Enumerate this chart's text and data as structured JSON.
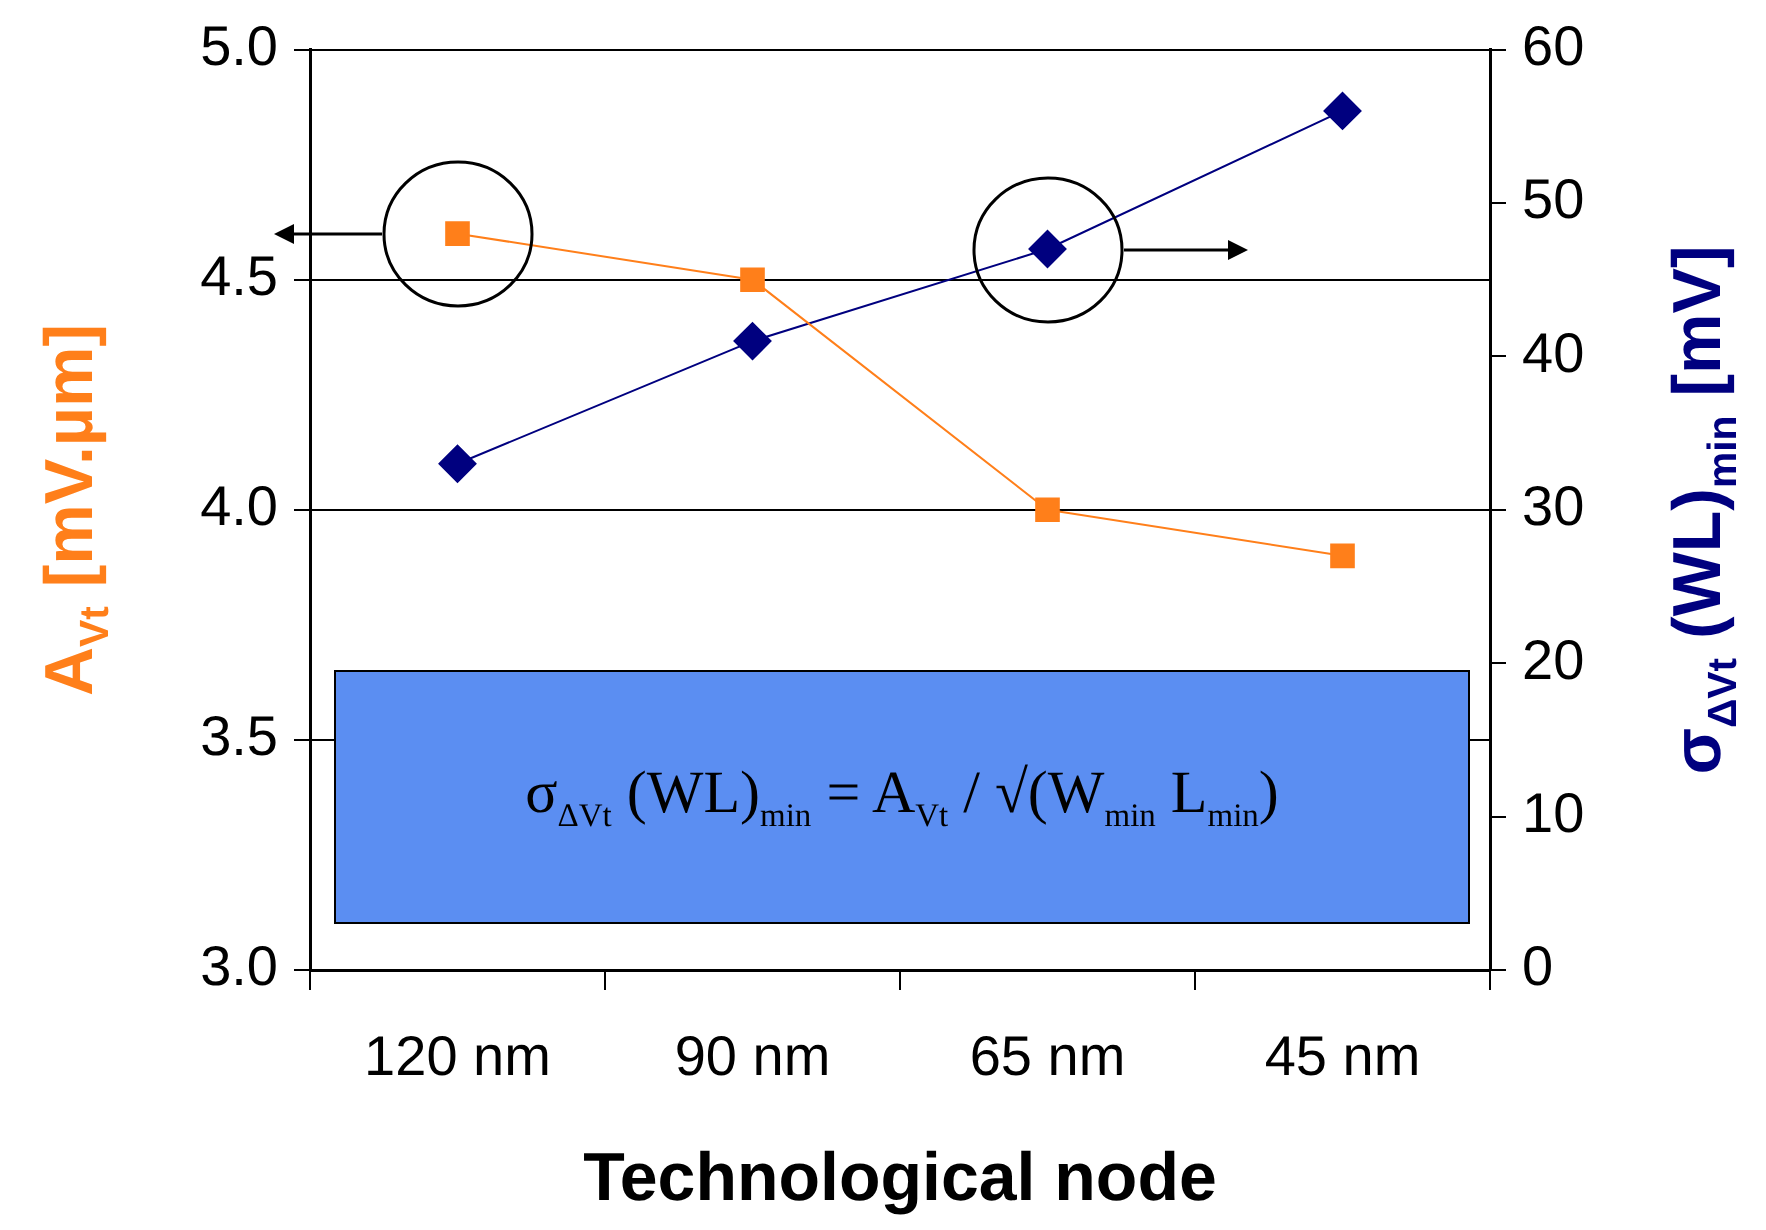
{
  "chart_data": {
    "type": "line",
    "xlabel": "Technological node",
    "ylabel": "A$_{Vt}$ [mV.µm]",
    "y2label": "σ$_{ΔVt}$ (WL)$_{min}$ [mV]",
    "categories": [
      "120 nm",
      "90 nm",
      "65 nm",
      "45 nm"
    ],
    "series": [
      {
        "color": "#ff7f1a",
        "values": [
          4.6,
          4.5,
          4.0,
          3.9
        ],
        "marker": "square"
      },
      {
        "color": "#00007f",
        "values": [
          33,
          41,
          47,
          56
        ],
        "marker": "diamond",
        "axis": "y2"
      }
    ],
    "ylim": [
      3.0,
      5.0
    ],
    "yticks": [
      {
        "value": 3,
        "label": "3.0"
      },
      3.5,
      {
        "value": 4,
        "label": "4.0"
      },
      4.5,
      {
        "value": 5,
        "label": "5.0"
      }
    ],
    "y2lim": [
      0,
      60
    ],
    "y2ticks": [
      0,
      10,
      20,
      30,
      40,
      50,
      60
    ],
    "grid": "y",
    "legend": false,
    "line_style": "solid",
    "annotations": [
      "σ$_{ΔVt}$ (WL)$_{min}$ = A$_{Vt}$ / √(W$_{min}$ L$_{min}$)"
    ]
  }
}
